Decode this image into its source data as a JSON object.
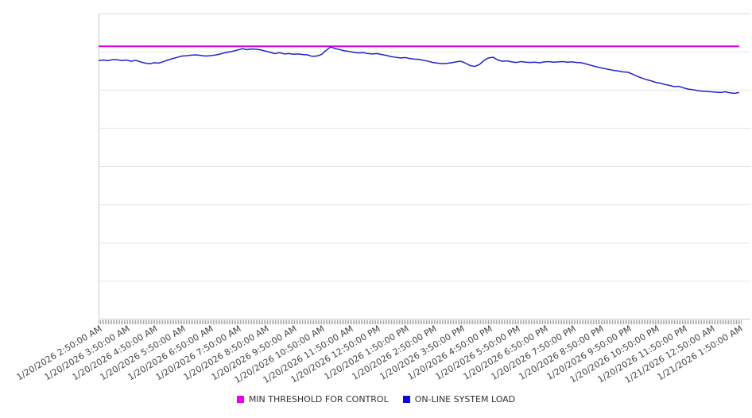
{
  "chart_data": {
    "type": "line",
    "title": "",
    "xlabel": "",
    "ylabel": "",
    "ylim": [
      0,
      100
    ],
    "y_axis_tick_labels_visible": false,
    "grid": "horizontal",
    "grid_bands": 8,
    "legend_position": "bottom-center",
    "points_per_label": 6,
    "x_categories": [
      "1/20/2026 2:50:00 AM",
      "1/20/2026 3:50:00 AM",
      "1/20/2026 4:50:00 AM",
      "1/20/2026 5:50:00 AM",
      "1/20/2026 6:50:00 AM",
      "1/20/2026 7:50:00 AM",
      "1/20/2026 8:50:00 AM",
      "1/20/2026 9:50:00 AM",
      "1/20/2026 10:50:00 AM",
      "1/20/2026 11:50:00 AM",
      "1/20/2026 12:50:00 PM",
      "1/20/2026 1:50:00 PM",
      "1/20/2026 2:50:00 PM",
      "1/20/2026 3:50:00 PM",
      "1/20/2026 4:50:00 PM",
      "1/20/2026 5:50:00 PM",
      "1/20/2026 6:50:00 PM",
      "1/20/2026 7:50:00 PM",
      "1/20/2026 8:50:00 PM",
      "1/20/2026 9:50:00 PM",
      "1/20/2026 10:50:00 PM",
      "1/20/2026 11:50:00 PM",
      "1/21/2026 12:50:00 AM",
      "1/21/2026 1:50:00 AM"
    ],
    "series": [
      {
        "name": "MIN THRESHOLD FOR CONTROL",
        "color": "#dd00dd",
        "kind": "constant-threshold",
        "value": 89.3,
        "units": "relative load (no y-axis labels shown, estimated 0-100 scale)"
      },
      {
        "name": "ON-LINE SYSTEM LOAD",
        "color": "#2222c8",
        "kind": "line",
        "units": "relative load (no y-axis labels shown, estimated 0-100 scale)",
        "values": [
          84.6,
          84.8,
          84.6,
          84.9,
          84.9,
          84.6,
          84.8,
          84.4,
          84.7,
          84.2,
          83.8,
          83.6,
          83.9,
          83.8,
          84.3,
          84.8,
          85.3,
          85.7,
          86.1,
          86.2,
          86.4,
          86.5,
          86.3,
          86.1,
          86.2,
          86.4,
          86.7,
          87.1,
          87.4,
          87.7,
          88.1,
          88.5,
          88.2,
          88.4,
          88.3,
          88.1,
          87.7,
          87.3,
          86.9,
          87.2,
          86.8,
          86.9,
          86.7,
          86.8,
          86.6,
          86.5,
          86.0,
          86.1,
          86.6,
          87.9,
          89.1,
          88.5,
          88.2,
          87.8,
          87.6,
          87.3,
          87.1,
          87.2,
          86.9,
          86.8,
          86.9,
          86.6,
          86.3,
          85.9,
          85.7,
          85.5,
          85.6,
          85.3,
          85.1,
          85.0,
          84.7,
          84.4,
          84.0,
          83.8,
          83.6,
          83.7,
          83.9,
          84.2,
          84.4,
          83.8,
          83.0,
          82.7,
          83.3,
          84.6,
          85.5,
          85.7,
          84.8,
          84.4,
          84.5,
          84.2,
          84.0,
          84.3,
          84.1,
          84.0,
          84.1,
          83.9,
          84.2,
          84.3,
          84.1,
          84.2,
          84.3,
          84.1,
          84.2,
          84.0,
          83.9,
          83.5,
          83.1,
          82.7,
          82.3,
          82.0,
          81.7,
          81.4,
          81.2,
          80.9,
          80.8,
          80.2,
          79.5,
          78.9,
          78.4,
          78.0,
          77.5,
          77.2,
          76.8,
          76.5,
          76.1,
          76.2,
          75.7,
          75.3,
          75.1,
          74.8,
          74.6,
          74.5,
          74.4,
          74.3,
          74.2,
          74.4,
          74.1,
          73.9,
          74.2
        ]
      }
    ],
    "colors": {
      "gridline": "#e6e6e6",
      "axis_line": "#c8c8c8",
      "plot_top_border": "#dddddd",
      "minor_tick": "#a8a8a8",
      "x_label_text": "#454545",
      "legend_text": "#333333"
    }
  },
  "legend": {
    "items": [
      {
        "label": "MIN THRESHOLD FOR CONTROL",
        "color": "#ee00ee"
      },
      {
        "label": "ON-LINE SYSTEM LOAD",
        "color": "#0b0bdd"
      }
    ]
  }
}
